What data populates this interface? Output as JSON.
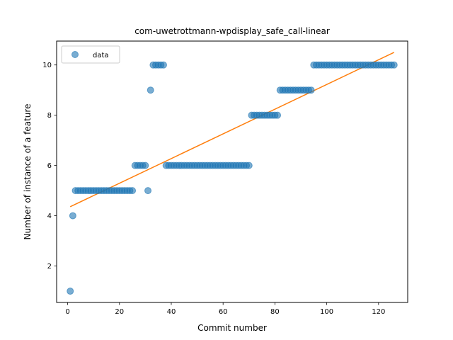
{
  "chart_data": {
    "type": "scatter",
    "title": "com-uwetrottmann-wpdisplay_safe_call-linear",
    "xlabel": "Commit number",
    "ylabel": "Number of instance of a feature",
    "xlim": [
      -4.25,
      131.25
    ],
    "ylim": [
      0.55,
      10.95
    ],
    "xticks": [
      0,
      20,
      40,
      60,
      80,
      100,
      120
    ],
    "yticks": [
      2,
      4,
      6,
      8,
      10
    ],
    "grid": false,
    "legend": {
      "placement": "top-left",
      "entries": [
        "data"
      ]
    },
    "colors": {
      "data": "#1f77b4",
      "fit": "#ff7f0e"
    },
    "series": [
      {
        "name": "data",
        "kind": "scatter",
        "x": [
          1,
          2,
          3,
          4,
          5,
          6,
          7,
          8,
          9,
          10,
          11,
          12,
          13,
          14,
          15,
          16,
          17,
          18,
          19,
          20,
          21,
          22,
          23,
          24,
          25,
          26,
          27,
          28,
          29,
          30,
          31,
          32,
          33,
          34,
          35,
          36,
          37,
          38,
          39,
          40,
          41,
          42,
          43,
          44,
          45,
          46,
          47,
          48,
          49,
          50,
          51,
          52,
          53,
          54,
          55,
          56,
          57,
          58,
          59,
          60,
          61,
          62,
          63,
          64,
          65,
          66,
          67,
          68,
          69,
          70,
          71,
          72,
          73,
          74,
          75,
          76,
          77,
          78,
          79,
          80,
          81,
          82,
          83,
          84,
          85,
          86,
          87,
          88,
          89,
          90,
          91,
          92,
          93,
          94,
          95,
          96,
          97,
          98,
          99,
          100,
          101,
          102,
          103,
          104,
          105,
          106,
          107,
          108,
          109,
          110,
          111,
          112,
          113,
          114,
          115,
          116,
          117,
          118,
          119,
          120,
          121,
          122,
          123,
          124,
          125,
          126
        ],
        "y": [
          1,
          4,
          5,
          5,
          5,
          5,
          5,
          5,
          5,
          5,
          5,
          5,
          5,
          5,
          5,
          5,
          5,
          5,
          5,
          5,
          5,
          5,
          5,
          5,
          5,
          6,
          6,
          6,
          6,
          6,
          5,
          9,
          10,
          10,
          10,
          10,
          10,
          6,
          6,
          6,
          6,
          6,
          6,
          6,
          6,
          6,
          6,
          6,
          6,
          6,
          6,
          6,
          6,
          6,
          6,
          6,
          6,
          6,
          6,
          6,
          6,
          6,
          6,
          6,
          6,
          6,
          6,
          6,
          6,
          6,
          8,
          8,
          8,
          8,
          8,
          8,
          8,
          8,
          8,
          8,
          8,
          9,
          9,
          9,
          9,
          9,
          9,
          9,
          9,
          9,
          9,
          9,
          9,
          9,
          10,
          10,
          10,
          10,
          10,
          10,
          10,
          10,
          10,
          10,
          10,
          10,
          10,
          10,
          10,
          10,
          10,
          10,
          10,
          10,
          10,
          10,
          10,
          10,
          10,
          10,
          10,
          10,
          10,
          10,
          10,
          10
        ]
      },
      {
        "name": "",
        "kind": "line",
        "x": [
          1,
          126
        ],
        "y": [
          4.36,
          10.5
        ]
      }
    ]
  }
}
